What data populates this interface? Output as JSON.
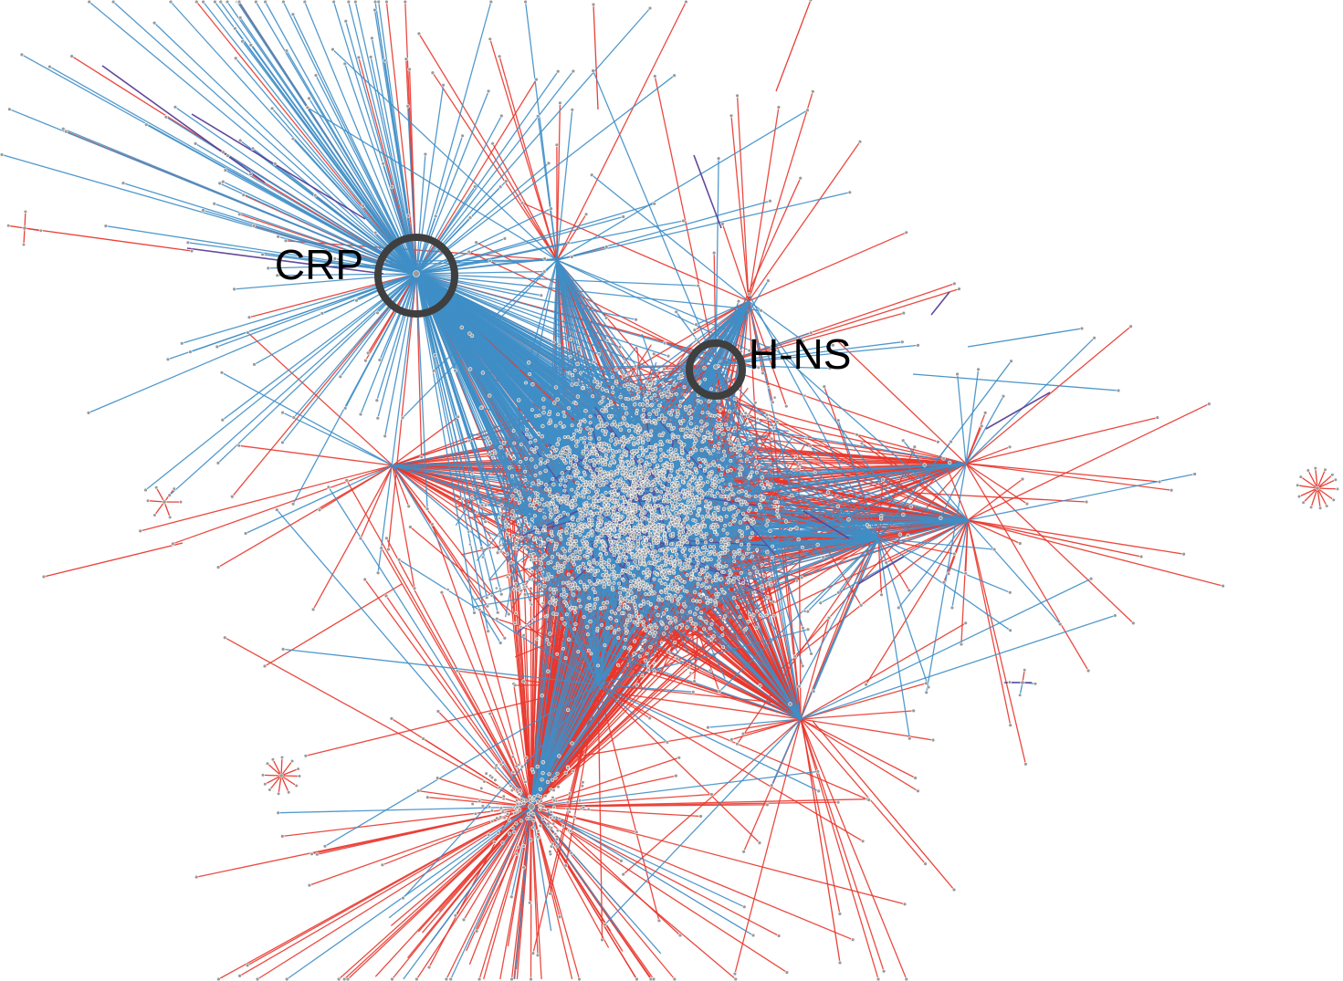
{
  "labels": {
    "crp": "CRP",
    "hns": "H-NS"
  },
  "colors": {
    "edge_activation": "#e8362c",
    "edge_repression": "#3f8ec6",
    "edge_dual": "#5b3f96",
    "node_fill": "#9a9a9a",
    "node_stroke": "#ffffff",
    "highlight_ring": "#3f3f3f",
    "background": "#ffffff"
  }
}
